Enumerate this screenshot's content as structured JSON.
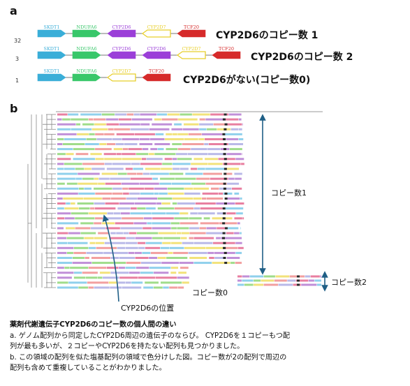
{
  "panel_a": {
    "label": "a",
    "rows": [
      {
        "count": "32",
        "genes": [
          {
            "name": "SKDT1",
            "color": "#3aaed8"
          },
          {
            "name": "NDUFA6",
            "color": "#38c76a"
          },
          {
            "name": "CYP2D6",
            "color": "#9b3fd8"
          },
          {
            "name": "CYP2D7",
            "color": "#e8cf2a",
            "outline": true
          },
          {
            "name": "TCF20",
            "color": "#d62a2a"
          }
        ],
        "caption": "CYP2D6のコピー数 1"
      },
      {
        "count": "3",
        "genes": [
          {
            "name": "SKDT1",
            "color": "#3aaed8"
          },
          {
            "name": "NDUFA6",
            "color": "#38c76a"
          },
          {
            "name": "CYP2D6",
            "color": "#9b3fd8"
          },
          {
            "name": "CYP2D6",
            "color": "#9b3fd8"
          },
          {
            "name": "CYP2D7",
            "color": "#e8cf2a",
            "outline": true
          },
          {
            "name": "TCF20",
            "color": "#d62a2a"
          }
        ],
        "caption": "CYP2D6のコピー数 2"
      },
      {
        "count": "1",
        "genes": [
          {
            "name": "SKDT1",
            "color": "#3aaed8"
          },
          {
            "name": "NDUFA6",
            "color": "#38c76a"
          },
          {
            "name": "CYP2D7",
            "color": "#e8cf2a",
            "outline": true
          },
          {
            "name": "TCF20",
            "color": "#d62a2a"
          }
        ],
        "caption": "CYP2D6がない(コピー数0)"
      }
    ]
  },
  "panel_b": {
    "label": "b",
    "copy1_label": "コピー数1",
    "copy2_label": "コピー数2",
    "copy0_label": "コピー数0",
    "position_label": "CYP2D6の位置",
    "arrow_color": "#1f5f86",
    "palette": [
      "#e87fa0",
      "#c08fd8",
      "#8fd0ec",
      "#9fdc8a",
      "#f2e27a",
      "#f29f9f",
      "#b9b9e8",
      "#2a2a2a"
    ]
  },
  "caption": {
    "title": "薬剤代謝遺伝子CYP2D6のコピー数の個人間の違い",
    "a_line1": "a. ゲノム配列から同定したCYP2D6周辺の遺伝子のならび。 CYP2D6を１コピーもつ配",
    "a_line2": "列が最も多いが、２コピーやCYP2D6を持たない配列も見つかりました。",
    "b_line1": "b. この領域の配列を似た塩基配列の領域で色分けした図。コピー数が2の配列で周辺の",
    "b_line2": "配列も含めて重複していることがわかりました。"
  }
}
